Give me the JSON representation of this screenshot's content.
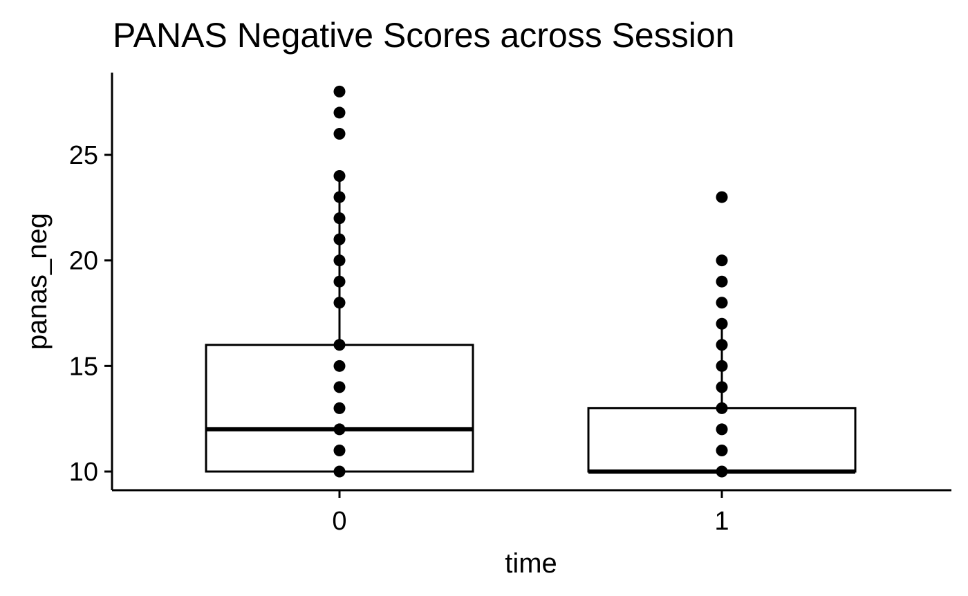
{
  "chart_data": {
    "type": "box",
    "title": "PANAS Negative Scores across Session",
    "xlabel": "time",
    "ylabel": "panas_neg",
    "categories": [
      "0",
      "1"
    ],
    "y_ticks": [
      10,
      15,
      20,
      25
    ],
    "ylim": [
      9.1,
      28.9
    ],
    "grid": false,
    "legend": "none",
    "boxes": [
      {
        "category": "0",
        "min": 10,
        "q1": 10,
        "median": 12,
        "q3": 16,
        "whisker_high": 24
      },
      {
        "category": "1",
        "min": 10,
        "q1": 10,
        "median": 10,
        "q3": 13,
        "whisker_high": 17
      }
    ],
    "points": [
      {
        "category": "0",
        "values": [
          10,
          11,
          12,
          13,
          14,
          15,
          16,
          18,
          19,
          20,
          21,
          22,
          23,
          24,
          26,
          27,
          28
        ]
      },
      {
        "category": "1",
        "values": [
          10,
          11,
          12,
          13,
          14,
          15,
          16,
          17,
          18,
          19,
          20,
          23
        ]
      }
    ],
    "colors": {
      "box_fill": "#ffffff",
      "stroke": "#000000",
      "points": "#000000"
    }
  }
}
